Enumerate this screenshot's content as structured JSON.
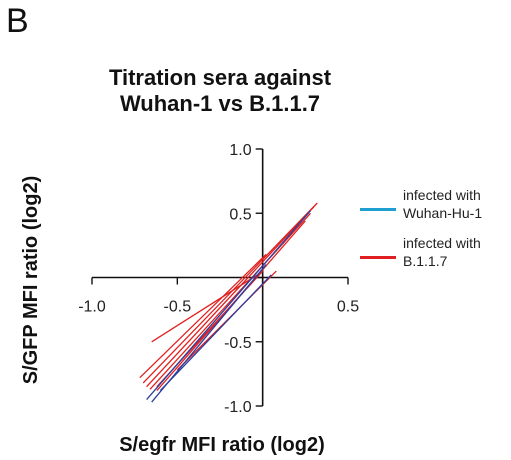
{
  "panel_label": "B",
  "chart_data": {
    "type": "line",
    "title": [
      "Titration sera against",
      "Wuhan-1 vs B.1.1.7"
    ],
    "xlabel": "S/egfr MFI ratio (log2)",
    "ylabel": "S/GFP MFI ratio (log2)",
    "xlim": [
      -1.0,
      0.5
    ],
    "ylim": [
      -1.0,
      1.0
    ],
    "xticks": [
      -1.0,
      -0.5,
      0,
      0.5
    ],
    "xtick_labels": [
      "-1.0",
      "-0.5",
      "",
      "0.5"
    ],
    "yticks": [
      -1.0,
      -0.5,
      0,
      0.5,
      1.0
    ],
    "ytick_labels": [
      "-1.0",
      "-0.5",
      "",
      "0.5",
      "1.0"
    ],
    "grid": false,
    "legend_position": "right",
    "legend": [
      {
        "label": "infected with Wuhan-Hu-1",
        "color": "#1f9fd0"
      },
      {
        "label": "infected with B.1.1.7",
        "color": "#e02020"
      }
    ],
    "series": [
      {
        "group": "B.1.1.7",
        "color": "#e02020",
        "x": [
          -0.7,
          0.32
        ],
        "y": [
          -0.82,
          0.58
        ]
      },
      {
        "group": "B.1.1.7",
        "color": "#e02020",
        "x": [
          -0.68,
          0.3
        ],
        "y": [
          -0.85,
          0.55
        ]
      },
      {
        "group": "B.1.1.7",
        "color": "#e02020",
        "x": [
          -0.66,
          0.28
        ],
        "y": [
          -0.87,
          0.5
        ]
      },
      {
        "group": "B.1.1.7",
        "color": "#e02020",
        "x": [
          -0.62,
          0.25
        ],
        "y": [
          -0.88,
          0.44
        ]
      },
      {
        "group": "B.1.1.7",
        "color": "#e02020",
        "x": [
          -0.72,
          0.02
        ],
        "y": [
          -0.78,
          0.18
        ]
      },
      {
        "group": "B.1.1.7",
        "color": "#e02020",
        "x": [
          -0.65,
          -0.02
        ],
        "y": [
          -0.5,
          0.03
        ]
      },
      {
        "group": "B.1.1.7",
        "color": "#e02020",
        "x": [
          -0.62,
          0.0
        ],
        "y": [
          -0.85,
          0.05
        ]
      },
      {
        "group": "B.1.1.7",
        "color": "#e02020",
        "x": [
          -0.5,
          0.08
        ],
        "y": [
          -0.72,
          0.05
        ]
      },
      {
        "group": "Wuhan-Hu-1",
        "color": "#2c3e9e",
        "x": [
          -0.68,
          0.28
        ],
        "y": [
          -0.95,
          0.52
        ]
      },
      {
        "group": "Wuhan-Hu-1",
        "color": "#2c3e9e",
        "x": [
          -0.65,
          0.02
        ],
        "y": [
          -0.97,
          0.1
        ]
      },
      {
        "group": "Wuhan-Hu-1",
        "color": "#2c3e9e",
        "x": [
          -0.6,
          0.05
        ],
        "y": [
          -0.88,
          0.02
        ]
      }
    ]
  }
}
